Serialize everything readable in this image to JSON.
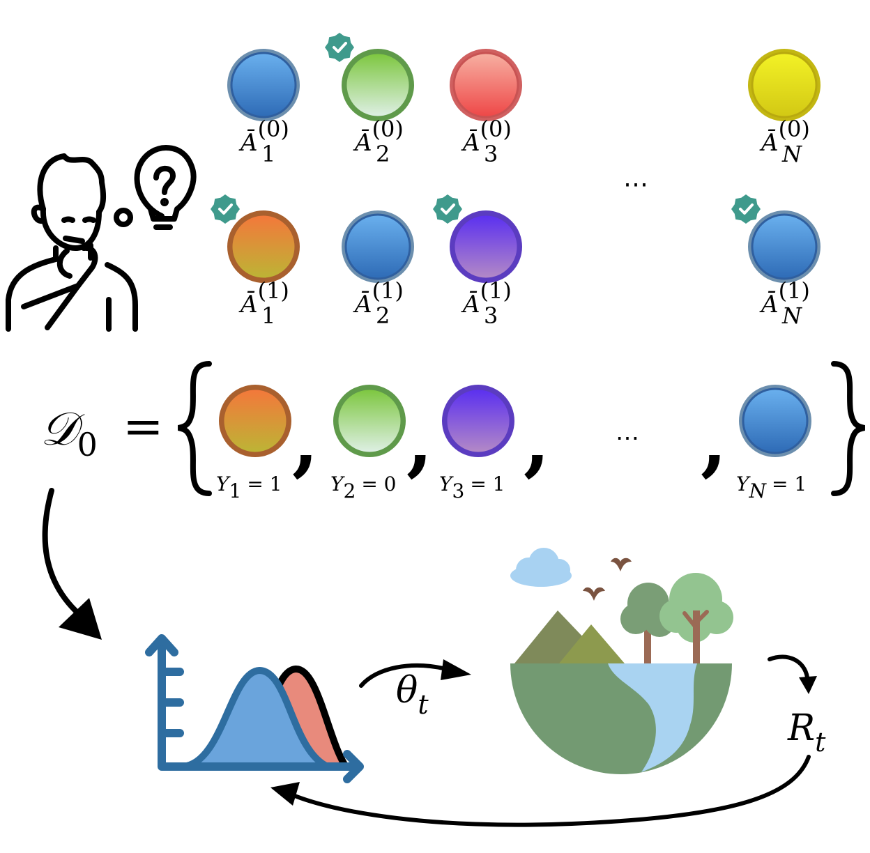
{
  "candidates": [
    {
      "label_base": "Ā",
      "sub": "1",
      "sup": "(0)",
      "colors": [
        "#6ab0ee",
        "#2e6bb6"
      ],
      "ring": "#6c8fae",
      "inner_ring": "#2f5f9f",
      "checked": false
    },
    {
      "label_base": "Ā",
      "sub": "2",
      "sup": "(0)",
      "colors": [
        "#7cc63e",
        "#dff0e6"
      ],
      "ring": "#5f9a4a",
      "inner_ring": "#5f9a4a",
      "checked": true
    },
    {
      "label_base": "Ā",
      "sub": "3",
      "sup": "(0)",
      "colors": [
        "#f7b0a2",
        "#ee4747"
      ],
      "ring": "#d06060",
      "inner_ring": "#c85353",
      "checked": false
    },
    {
      "label_base": "Ā",
      "sub": "N",
      "sup": "(0)",
      "colors": [
        "#f3f226",
        "#d2c814"
      ],
      "ring": "#c3b712",
      "inner_ring": "#b8a90f",
      "checked": false
    },
    {
      "label_base": "Ā",
      "sub": "1",
      "sup": "(1)",
      "colors": [
        "#f4773b",
        "#bcb535"
      ],
      "ring": "#a9602e",
      "inner_ring": "#a9602e",
      "checked": true
    },
    {
      "label_base": "Ā",
      "sub": "2",
      "sup": "(1)",
      "colors": [
        "#6ab0ee",
        "#2e6bb6"
      ],
      "ring": "#6c8fae",
      "inner_ring": "#2f5f9f",
      "checked": false
    },
    {
      "label_base": "Ā",
      "sub": "3",
      "sup": "(1)",
      "colors": [
        "#5a2ff0",
        "#b48ac6"
      ],
      "ring": "#5b3cc0",
      "inner_ring": "#5b3cc0",
      "checked": true
    },
    {
      "label_base": "Ā",
      "sub": "N",
      "sup": "(1)",
      "colors": [
        "#6ab0ee",
        "#2e6bb6"
      ],
      "ring": "#6c8fae",
      "inner_ring": "#2f5f9f",
      "checked": true
    }
  ],
  "ellipsis": "⋯",
  "dataset": {
    "name_base": "𝒟",
    "name_sub": "0",
    "equals": "=",
    "comma": ",",
    "items": [
      {
        "y_base": "Y",
        "y_sub": "1",
        "y_value": "= 1"
      },
      {
        "y_base": "Y",
        "y_sub": "2",
        "y_value": "= 0"
      },
      {
        "y_base": "Y",
        "y_sub": "3",
        "y_value": "= 1"
      },
      {
        "y_base": "Y",
        "y_sub": "N",
        "y_value": "= 1"
      }
    ]
  },
  "loop": {
    "theta_base": "θ",
    "theta_sub": "t",
    "reward_base": "R",
    "reward_sub": "t"
  },
  "icons": [
    "person-thinking-icon",
    "lightbulb-question-icon",
    "check-badge-icon",
    "distribution-chart-icon",
    "environment-globe-icon"
  ],
  "colors": {
    "check_badge": "#3f9a8c",
    "chart_axis": "#2e6da0",
    "chart_blue": "#6aa4dc",
    "chart_red": "#e88a7c",
    "globe_land": "#739a72",
    "globe_water": "#a9d3f1",
    "mountain_dark": "#7f8a5a",
    "mountain_light": "#8d9a4e",
    "tree_dark": "#7a9e76",
    "tree_light": "#93c490",
    "trunk": "#9b6a55",
    "bird": "#7a5340",
    "cloud": "#a8d2f2"
  }
}
